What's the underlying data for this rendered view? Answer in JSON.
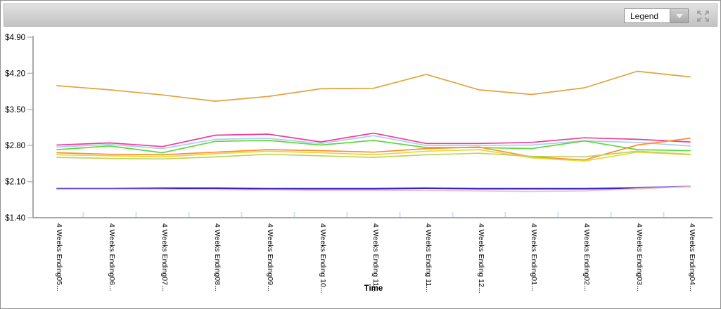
{
  "toolbar": {
    "legend_dropdown": {
      "value": "Legend"
    }
  },
  "chart_data": {
    "type": "line",
    "title": "",
    "xlabel": "Time",
    "ylabel": "",
    "grid": false,
    "legend_position": "collapsed-dropdown",
    "ylim": [
      1.4,
      4.9
    ],
    "y_tick_labels": [
      "$4.90",
      "$4.20",
      "$3.50",
      "$2.80",
      "$2.10",
      "$1.40"
    ],
    "categories": [
      "4 Weeks Ending05...",
      "4 Weeks Ending06...",
      "4 Weeks Ending07...",
      "4 Weeks Ending08...",
      "4 Weeks Ending09...",
      "4 Weeks Ending 10...",
      "4 Weeks Ending 11...",
      "4 Weeks Ending 11...",
      "4 Weeks Ending 12...",
      "4 Weeks Ending01...",
      "4 Weeks Ending02...",
      "4 Weeks Ending03...",
      "4 Weeks Ending04..."
    ],
    "series": [
      {
        "name": "gold",
        "color": "#e3a33b",
        "values": [
          3.96,
          3.88,
          3.78,
          3.66,
          3.75,
          3.9,
          3.91,
          4.18,
          3.88,
          3.79,
          3.92,
          4.24,
          4.13
        ]
      },
      {
        "name": "magenta",
        "color": "#f23c96",
        "values": [
          2.81,
          2.85,
          2.78,
          3.0,
          3.02,
          2.87,
          3.04,
          2.84,
          2.84,
          2.86,
          2.95,
          2.92,
          2.87
        ]
      },
      {
        "name": "light-blue",
        "color": "#a9cfec",
        "values": [
          2.77,
          2.82,
          2.74,
          2.92,
          2.94,
          2.84,
          2.99,
          2.8,
          2.8,
          2.81,
          2.89,
          2.86,
          2.79
        ]
      },
      {
        "name": "green",
        "color": "#5fd83a",
        "values": [
          2.72,
          2.79,
          2.66,
          2.88,
          2.9,
          2.81,
          2.9,
          2.76,
          2.76,
          2.74,
          2.89,
          2.72,
          2.7
        ]
      },
      {
        "name": "orange",
        "color": "#ff8b2e",
        "values": [
          2.66,
          2.63,
          2.62,
          2.67,
          2.72,
          2.7,
          2.67,
          2.74,
          2.77,
          2.58,
          2.52,
          2.81,
          2.94
        ]
      },
      {
        "name": "yellow",
        "color": "#e8d832",
        "values": [
          2.62,
          2.6,
          2.58,
          2.64,
          2.69,
          2.66,
          2.62,
          2.69,
          2.72,
          2.56,
          2.5,
          2.67,
          2.62
        ]
      },
      {
        "name": "yellow-green",
        "color": "#bdd45e",
        "values": [
          2.57,
          2.55,
          2.54,
          2.58,
          2.63,
          2.6,
          2.57,
          2.62,
          2.65,
          2.59,
          2.58,
          2.69,
          2.63
        ]
      },
      {
        "name": "lavender",
        "color": "#9c95e8",
        "values": [
          1.97,
          1.97,
          1.98,
          1.98,
          1.97,
          1.97,
          1.97,
          1.98,
          1.97,
          1.97,
          1.97,
          1.99,
          2.01
        ]
      },
      {
        "name": "blue",
        "color": "#3320c8",
        "values": [
          1.96,
          1.96,
          1.97,
          1.97,
          1.96,
          1.96,
          1.96,
          1.97,
          1.96,
          1.96,
          1.96,
          1.97,
          2.0
        ]
      },
      {
        "name": "light-pink",
        "color": "#f5bdbd",
        "values": [
          1.95,
          1.95,
          1.95,
          1.94,
          1.94,
          1.93,
          1.93,
          1.93,
          1.92,
          1.91,
          1.92,
          1.96,
          2.0
        ]
      }
    ],
    "colors": {
      "axis": "#a8a8a8",
      "x_tick": "#cfe0ef",
      "y_tick": "#b8b8b8",
      "label_text": "#000000"
    }
  }
}
